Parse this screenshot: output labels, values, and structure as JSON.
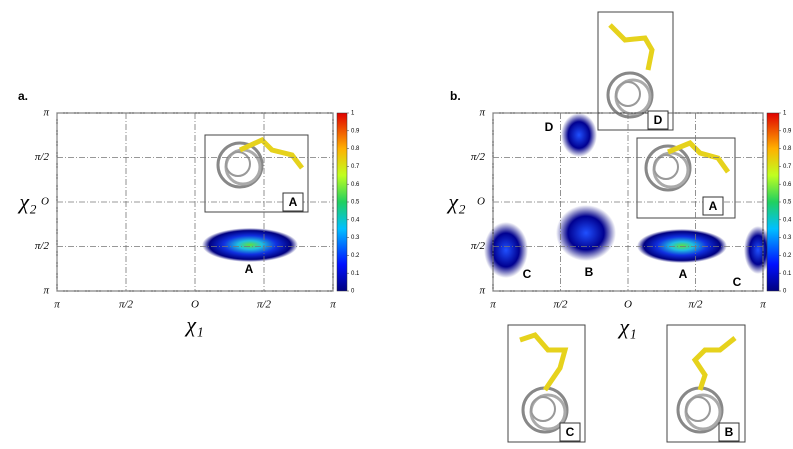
{
  "chart_data": [
    {
      "type": "heatmap",
      "panel_label": "a.",
      "x_label": "χ₁",
      "y_label": "χ₂",
      "xlim": [
        -180,
        180
      ],
      "ylim": [
        -180,
        180
      ],
      "xticks": [
        {
          "value": -180,
          "label": "π"
        },
        {
          "value": -90,
          "label": "π/2"
        },
        {
          "value": 0,
          "label": "O"
        },
        {
          "value": 90,
          "label": "π/2"
        },
        {
          "value": 180,
          "label": "π"
        }
      ],
      "yticks": [
        {
          "value": 180,
          "label": "π"
        },
        {
          "value": 90,
          "label": "π/2"
        },
        {
          "value": 0,
          "label": "O"
        },
        {
          "value": -90,
          "label": "π/2"
        },
        {
          "value": -180,
          "label": "π"
        }
      ],
      "grid": true,
      "colorbar_ticks": [
        0,
        0.1,
        0.2,
        0.3,
        0.4,
        0.5,
        0.6,
        0.7,
        0.8,
        0.9,
        1
      ],
      "annotations": [
        "A"
      ],
      "insets": [
        "A"
      ]
    },
    {
      "type": "heatmap",
      "panel_label": "b.",
      "x_label": "χ₁",
      "y_label": "χ₂",
      "xlim": [
        -180,
        180
      ],
      "ylim": [
        -180,
        180
      ],
      "xticks": [
        {
          "value": -180,
          "label": "π"
        },
        {
          "value": -90,
          "label": "π/2"
        },
        {
          "value": 0,
          "label": "O"
        },
        {
          "value": 90,
          "label": "π/2"
        },
        {
          "value": 180,
          "label": "π"
        }
      ],
      "yticks": [
        {
          "value": 180,
          "label": "π"
        },
        {
          "value": 90,
          "label": "π/2"
        },
        {
          "value": 0,
          "label": "O"
        },
        {
          "value": -90,
          "label": "π/2"
        },
        {
          "value": -180,
          "label": "π"
        }
      ],
      "grid": true,
      "colorbar_ticks": [
        0,
        0.1,
        0.2,
        0.3,
        0.4,
        0.5,
        0.6,
        0.7,
        0.8,
        0.9,
        1
      ],
      "annotations": [
        "D",
        "C",
        "B",
        "A",
        "C"
      ],
      "insets": [
        "A",
        "D",
        "C",
        "B"
      ]
    }
  ]
}
